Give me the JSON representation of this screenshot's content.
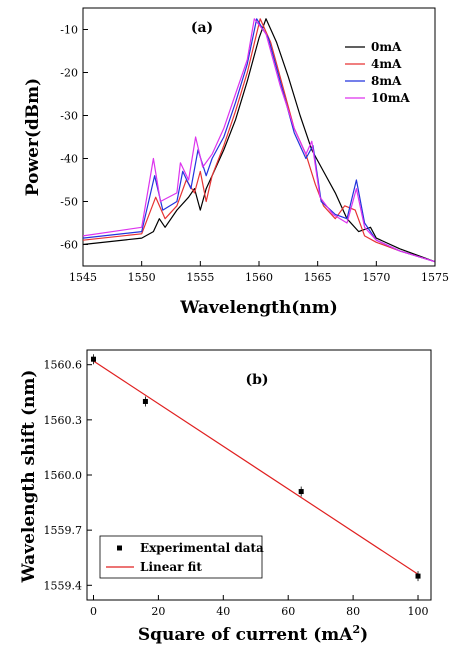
{
  "chart_data": [
    {
      "panel_label": "(a)",
      "type": "line",
      "xlabel": "Wavelength(nm)",
      "ylabel": "Power(dBm)",
      "xlim": [
        1545,
        1575
      ],
      "ylim": [
        -65,
        -5
      ],
      "xticks": [
        1545,
        1550,
        1555,
        1560,
        1565,
        1570,
        1575
      ],
      "yticks": [
        -60,
        -50,
        -40,
        -30,
        -20,
        -10
      ],
      "legend_position": "top-right",
      "series": [
        {
          "name": "0mA",
          "color": "#000000",
          "x": [
            1545,
            1550,
            1551,
            1551.5,
            1552,
            1553,
            1554,
            1554.5,
            1555,
            1555.5,
            1556,
            1557,
            1558,
            1559,
            1560,
            1560.6,
            1561.5,
            1562.5,
            1563.5,
            1564.5,
            1565.5,
            1566.5,
            1567.5,
            1568.5,
            1569.5,
            1570,
            1572,
            1575
          ],
          "y": [
            -60,
            -58.5,
            -57,
            -54,
            -56,
            -52,
            -49,
            -47,
            -52,
            -47,
            -44,
            -38,
            -31,
            -22,
            -12,
            -7.5,
            -13,
            -21,
            -30,
            -38,
            -43,
            -48,
            -54,
            -57,
            -56,
            -58.5,
            -61,
            -64
          ]
        },
        {
          "name": "4mA",
          "color": "#e63333",
          "x": [
            1545,
            1550,
            1551.2,
            1552,
            1553,
            1553.8,
            1554.5,
            1555,
            1555.5,
            1556,
            1557,
            1558,
            1559,
            1560.1,
            1561,
            1562,
            1563,
            1564,
            1564.8,
            1565.5,
            1566.5,
            1567.3,
            1568.2,
            1569,
            1570,
            1572,
            1575
          ],
          "y": [
            -59,
            -57.5,
            -49,
            -54,
            -51,
            -45,
            -48,
            -43,
            -50,
            -44,
            -37,
            -29,
            -20,
            -7.5,
            -13,
            -23,
            -33,
            -39,
            -46,
            -51,
            -54,
            -51,
            -52,
            -58,
            -59.5,
            -61.5,
            -64
          ]
        },
        {
          "name": "8mA",
          "color": "#2233dd",
          "x": [
            1545,
            1550,
            1551.1,
            1551.8,
            1553,
            1553.5,
            1554.2,
            1554.8,
            1555.5,
            1556,
            1557,
            1558,
            1559,
            1559.8,
            1560.8,
            1562,
            1563,
            1564,
            1564.6,
            1565.3,
            1566.5,
            1567.5,
            1568.3,
            1569,
            1570,
            1572,
            1575
          ],
          "y": [
            -58.5,
            -57,
            -44,
            -52,
            -50,
            -43,
            -47,
            -38,
            -44,
            -40,
            -35,
            -27,
            -18,
            -7.5,
            -12,
            -24,
            -34,
            -40,
            -37,
            -50,
            -53,
            -54,
            -45,
            -55,
            -59,
            -61.5,
            -64
          ]
        },
        {
          "name": "10mA",
          "color": "#dd33ee",
          "x": [
            1545,
            1550,
            1551,
            1551.6,
            1553,
            1553.3,
            1554,
            1554.6,
            1555.2,
            1556,
            1557,
            1558,
            1559,
            1559.6,
            1560.6,
            1561.8,
            1563,
            1564,
            1564.5,
            1565.2,
            1566.3,
            1567.5,
            1568.3,
            1569,
            1570,
            1572,
            1575
          ],
          "y": [
            -58,
            -56,
            -40,
            -50,
            -48,
            -41,
            -45,
            -35,
            -42,
            -39,
            -33,
            -25,
            -17,
            -7.5,
            -11,
            -23,
            -33,
            -39,
            -36,
            -49,
            -53,
            -55,
            -47,
            -56,
            -59,
            -61.5,
            -64
          ]
        }
      ]
    },
    {
      "panel_label": "(b)",
      "type": "scatter",
      "xlabel": "Square of current (mA",
      "xlabel_sup": "2",
      "xlabel_end": ")",
      "ylabel": "Wavelength shift (nm)",
      "xlim": [
        -2,
        104
      ],
      "ylim": [
        1559.32,
        1560.68
      ],
      "xticks": [
        0,
        20,
        40,
        60,
        80,
        100
      ],
      "yticks": [
        1559.4,
        1559.7,
        1560.0,
        1560.3,
        1560.6
      ],
      "ytick_labels": [
        "1559.4",
        "1559.7",
        "1560.0",
        "1560.3",
        "1560.6"
      ],
      "legend_position": "bottom-left",
      "series": [
        {
          "name": "Experimental data",
          "color": "#000000",
          "x": [
            0,
            16,
            64,
            100
          ],
          "y": [
            1560.63,
            1560.4,
            1559.91,
            1559.45
          ]
        }
      ],
      "fit": {
        "name": "Linear fit",
        "color": "#e02020",
        "x": [
          0,
          100
        ],
        "y": [
          1560.62,
          1559.46
        ]
      }
    }
  ]
}
